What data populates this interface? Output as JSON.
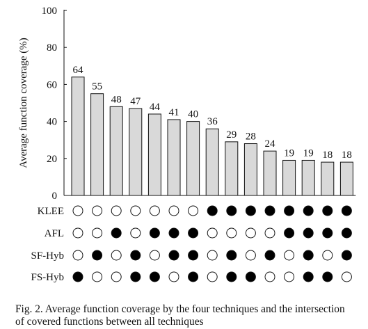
{
  "chart_data": {
    "type": "bar",
    "ylabel": "Average function coverage (%)",
    "xlabel": "",
    "ylim": [
      0,
      100
    ],
    "yticks": [
      0,
      20,
      40,
      60,
      80,
      100
    ],
    "grid": false,
    "values": [
      64,
      55,
      48,
      47,
      44,
      41,
      40,
      36,
      29,
      28,
      24,
      19,
      19,
      18,
      18
    ],
    "bar_color": "#d9d9d9",
    "intersection_matrix": {
      "rows": [
        "KLEE",
        "AFL",
        "SF-Hyb",
        "FS-Hyb"
      ],
      "filled": [
        [
          0,
          0,
          0,
          0,
          0,
          0,
          0,
          1,
          1,
          1,
          1,
          1,
          1,
          1,
          1
        ],
        [
          0,
          0,
          1,
          0,
          1,
          1,
          1,
          0,
          0,
          0,
          0,
          1,
          1,
          1,
          1
        ],
        [
          0,
          1,
          0,
          1,
          0,
          1,
          1,
          0,
          1,
          0,
          1,
          0,
          1,
          0,
          1
        ],
        [
          1,
          0,
          0,
          1,
          1,
          0,
          1,
          0,
          1,
          1,
          0,
          0,
          1,
          1,
          0
        ]
      ]
    }
  },
  "caption": {
    "line1": "Fig. 2.  Average function coverage by the four techniques and the intersection",
    "line2": "of covered functions between all techniques"
  }
}
